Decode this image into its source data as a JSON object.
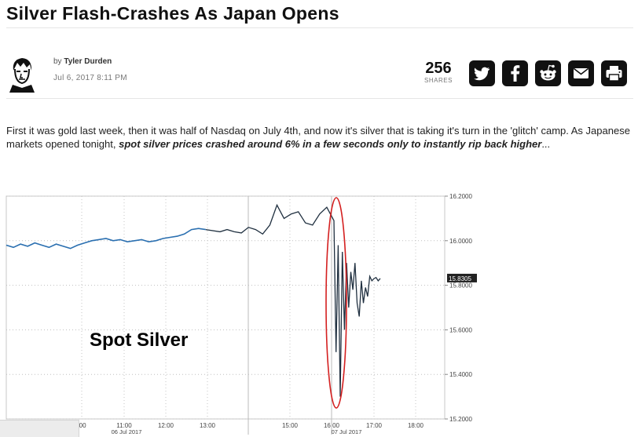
{
  "article": {
    "title": "Silver Flash-Crashes As Japan Opens",
    "byline_prefix": "by",
    "author": "Tyler Durden",
    "date": "Jul 6, 2017 8:11 PM",
    "shares_count": "256",
    "shares_label": "SHARES",
    "body_plain": "First it was gold last week, then it was half of Nasdaq on July 4th, and now it's silver that is taking it's turn in the 'glitch' camp. As Japanese markets opened tonight, ",
    "body_bold": "spot silver prices crashed around 6% in a few seconds only to instantly rip back higher",
    "body_ellipsis": "..."
  },
  "share_buttons": [
    {
      "name": "twitter",
      "icon": "twitter-icon"
    },
    {
      "name": "facebook",
      "icon": "facebook-icon"
    },
    {
      "name": "reddit",
      "icon": "reddit-icon"
    },
    {
      "name": "email",
      "icon": "email-icon"
    },
    {
      "name": "print",
      "icon": "print-icon"
    }
  ],
  "chart_data": {
    "type": "line",
    "annotation": "Spot Silver",
    "last_value_label": "15.8305",
    "y_ticks": [
      "16.2000",
      "16.0000",
      "15.8000",
      "15.6000",
      "15.4000",
      "15.2000"
    ],
    "ylim": [
      15.18,
      16.22
    ],
    "x_tick_labels": [
      ":00",
      "11:00",
      "12:00",
      "13:00",
      "15:00",
      "16:00",
      "17:00",
      "18:00"
    ],
    "x_date_labels": [
      "06 Jul 2017",
      "07 Jul 2017"
    ],
    "series": [
      {
        "values": [
          15.98,
          15.97,
          15.985,
          15.975,
          15.99,
          15.98,
          15.97,
          15.985,
          15.975,
          15.965,
          15.98,
          15.99,
          16.0,
          16.005,
          16.01,
          16.0,
          16.005,
          15.995,
          16.0,
          16.005,
          15.995,
          16.0,
          16.01,
          16.015,
          16.02,
          16.03,
          16.05,
          16.055,
          16.05,
          16.055,
          16.04,
          16.05,
          16.04,
          16.035,
          16.06,
          16.05,
          16.03,
          16.07,
          16.16,
          16.1,
          16.12,
          16.13,
          16.08,
          16.07,
          16.12,
          16.15,
          16.09,
          15.5,
          15.98,
          15.3,
          15.95,
          15.6,
          15.9,
          15.7,
          15.86,
          15.78,
          15.9,
          15.72,
          15.66,
          15.82,
          15.72,
          15.79,
          15.75,
          15.84,
          15.82,
          15.83,
          15.835,
          15.82,
          15.8305
        ],
        "colors": "blue-black"
      }
    ],
    "highlight": "red ellipse around the crash near 16:00",
    "grid": true,
    "grid_style": "dotted"
  },
  "colors": {
    "accent_dark": "#111111",
    "chart_line_blue": "#2a6fb0",
    "chart_line_dark": "#203040",
    "highlight_red": "#d42020"
  }
}
